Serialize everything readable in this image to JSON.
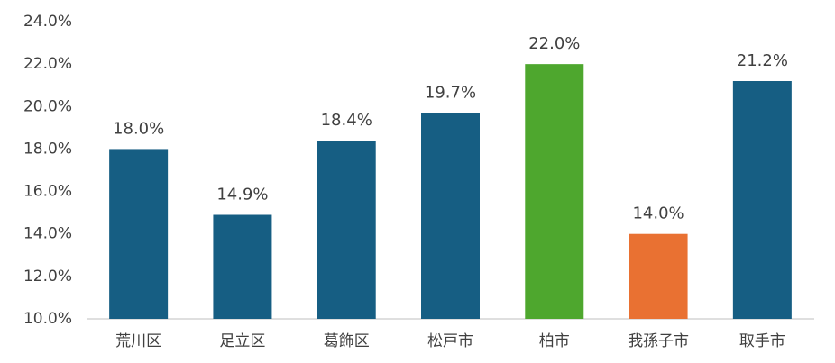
{
  "chart_data": {
    "type": "bar",
    "categories": [
      "荒川区",
      "足立区",
      "葛飾区",
      "松戸市",
      "柏市",
      "我孫子市",
      "取手市"
    ],
    "values": [
      18.0,
      14.9,
      18.4,
      19.7,
      22.0,
      14.0,
      21.2
    ],
    "value_labels": [
      "18.0%",
      "14.9%",
      "18.4%",
      "19.7%",
      "22.0%",
      "14.0%",
      "21.2%"
    ],
    "colors": [
      "#165e83",
      "#165e83",
      "#165e83",
      "#165e83",
      "#4ea72e",
      "#e97132",
      "#165e83"
    ],
    "ylim": [
      10,
      24
    ],
    "yticks": [
      {
        "value": 10,
        "label": "10.0%"
      },
      {
        "value": 12,
        "label": "12.0%"
      },
      {
        "value": 14,
        "label": "14.0%"
      },
      {
        "value": 16,
        "label": "16.0%"
      },
      {
        "value": 18,
        "label": "18.0%"
      },
      {
        "value": 20,
        "label": "20.0%"
      },
      {
        "value": 22,
        "label": "22.0%"
      },
      {
        "value": 24,
        "label": "24.0%"
      }
    ],
    "grid": false
  }
}
